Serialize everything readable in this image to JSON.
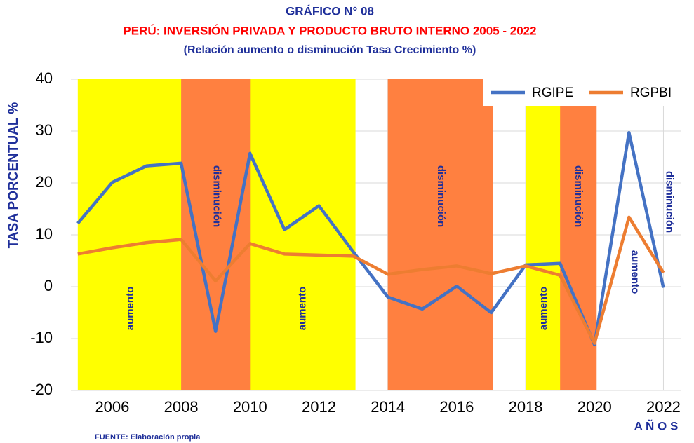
{
  "chart_data": {
    "type": "line",
    "title": "GRÁFICO N° 08",
    "subtitle": "PERÚ: INVERSIÓN PRIVADA Y PRODUCTO BRUTO INTERNO 2005 - 2022",
    "subtitle2": "(Relación aumento o disminución Tasa Crecimiento %)",
    "y_label": "TASA PORCENTUAL %",
    "x_label": "A Ñ O S",
    "source": "FUENTE: Elaboración propia",
    "x": [
      2005,
      2006,
      2007,
      2008,
      2009,
      2010,
      2011,
      2012,
      2013,
      2014,
      2015,
      2016,
      2017,
      2018,
      2019,
      2020,
      2021,
      2022
    ],
    "series": [
      {
        "name": "RGIPE",
        "color": "#4472c4",
        "values": [
          12.2,
          20.1,
          23.3,
          23.8,
          -8.6,
          25.7,
          11,
          15.6,
          6.7,
          -2,
          -4.3,
          0.1,
          -5,
          4.2,
          4.5,
          -11.2,
          29.7,
          -0.2
        ]
      },
      {
        "name": "RGPBI",
        "color": "#ed7d31",
        "values": [
          6.3,
          7.5,
          8.5,
          9.1,
          1.1,
          8.3,
          6.3,
          6.1,
          5.9,
          2.4,
          3.3,
          4.0,
          2.5,
          4.0,
          2.2,
          -10.9,
          13.4,
          2.7
        ]
      }
    ],
    "bands": [
      {
        "start": 2005,
        "end": 2008,
        "color": "#ffff00",
        "label": "aumento"
      },
      {
        "start": 2008,
        "end": 2010,
        "color": "#ff8040",
        "label": "disminución"
      },
      {
        "start": 2010,
        "end": 2013,
        "color": "#ffff00",
        "label": "aumento"
      },
      {
        "start": 2014,
        "end": 2017,
        "color": "#ff8040",
        "label": "disminución"
      },
      {
        "start": 2018,
        "end": 2019,
        "color": "#ffff00",
        "label": "aumento"
      },
      {
        "start": 2019,
        "end": 2020,
        "color": "#ff8040",
        "label": "disminución"
      }
    ],
    "annotations": [
      {
        "text": "aumento",
        "x": 2021
      },
      {
        "text": "disminución",
        "x": 2022
      }
    ],
    "xlim": [
      2004.8,
      2022.5
    ],
    "xticks": [
      2006,
      2008,
      2010,
      2012,
      2014,
      2016,
      2018,
      2020,
      2022
    ],
    "ylim": [
      -20,
      40
    ],
    "yticks": [
      -20,
      -10,
      0,
      10,
      20,
      30,
      40
    ],
    "grid": true,
    "legend": "top-right"
  }
}
